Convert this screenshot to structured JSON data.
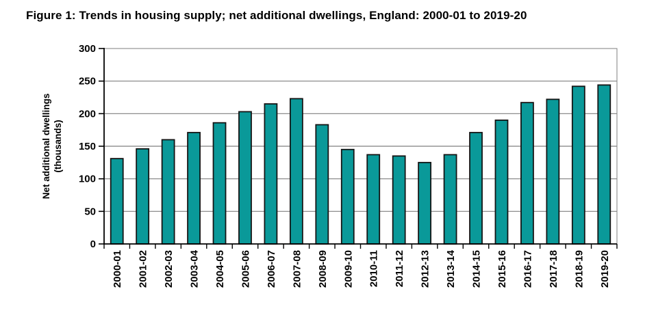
{
  "page": {
    "background": "#ffffff"
  },
  "chart_data": {
    "type": "bar",
    "title": "Figure 1: Trends in housing supply; net additional dwellings, England: 2000-01 to 2019-20",
    "ylabel_lines": [
      "Net additional dwellings",
      "(thousands)"
    ],
    "xlabel": "",
    "categories": [
      "2000-01",
      "2001-02",
      "2002-03",
      "2003-04",
      "2004-05",
      "2005-06",
      "2006-07",
      "2007-08",
      "2008-09",
      "2009-10",
      "2010-11",
      "2011-12",
      "2012-13",
      "2013-14",
      "2014-15",
      "2015-16",
      "2016-17",
      "2017-18",
      "2018-19",
      "2019-20"
    ],
    "values": [
      131,
      146,
      160,
      171,
      186,
      203,
      215,
      223,
      183,
      145,
      137,
      135,
      125,
      137,
      171,
      190,
      217,
      222,
      242,
      244
    ],
    "ylim": [
      0,
      300
    ],
    "ytick_step": 50,
    "yticks": [
      0,
      50,
      100,
      150,
      200,
      250,
      300
    ],
    "grid": true,
    "legend": "none",
    "colors": {
      "bar_fill": "#0a9999",
      "bar_stroke": "#141414",
      "grid": "#7f7f7f",
      "plot_border": "#7f7f7f",
      "axis": "#000000",
      "text": "#000000"
    }
  }
}
